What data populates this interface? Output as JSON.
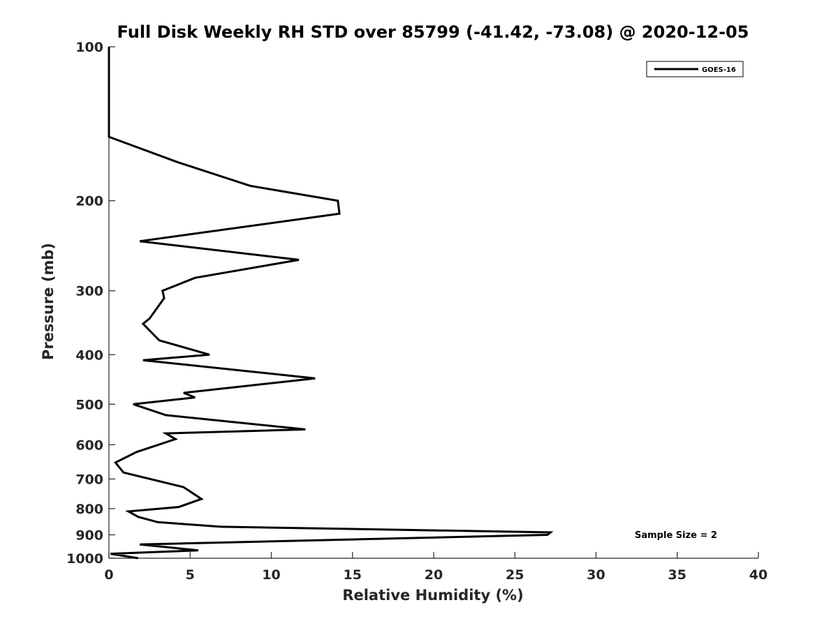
{
  "chart_data": {
    "type": "line",
    "title": "Full Disk Weekly RH STD over 85799 (-41.42, -73.08) @ 2020-12-05",
    "xlabel": "Relative Humidity (%)",
    "ylabel": "Pressure (mb)",
    "xlim": [
      0,
      40
    ],
    "ylim": [
      100,
      1000
    ],
    "yscale": "log",
    "y_reversed": true,
    "grid": false,
    "legend_location": "top-right",
    "x_ticks": [
      0,
      5,
      10,
      15,
      20,
      25,
      30,
      35,
      40
    ],
    "x_tick_labels": [
      "0",
      "5",
      "10",
      "15",
      "20",
      "25",
      "30",
      "35",
      "40"
    ],
    "y_ticks": [
      100,
      200,
      300,
      400,
      500,
      600,
      700,
      800,
      900,
      1000
    ],
    "y_tick_labels": [
      "100",
      "200",
      "300",
      "400",
      "500",
      "600",
      "700",
      "800",
      "900",
      "1000"
    ],
    "annotation": "Sample Size = 2",
    "series": [
      {
        "name": "GOES-16",
        "color": "#000000",
        "x": [
          0.0,
          0.0,
          0.0,
          0.0,
          4.2,
          8.7,
          14.1,
          14.2,
          1.9,
          11.7,
          5.3,
          3.3,
          3.3,
          3.4,
          2.5,
          2.1,
          3.1,
          6.2,
          2.1,
          12.7,
          4.6,
          5.3,
          1.5,
          3.5,
          12.1,
          3.5,
          4.1,
          1.7,
          0.4,
          0.9,
          4.6,
          5.7,
          4.3,
          1.2,
          1.8,
          3.0,
          6.9,
          27.2,
          27.0,
          1.9,
          5.5,
          0.1,
          1.8
        ],
        "y": [
          100,
          120,
          145,
          150,
          168,
          187,
          200,
          212,
          240,
          261,
          283,
          300,
          300,
          310,
          340,
          348,
          375,
          400,
          410,
          445,
          475,
          485,
          500,
          525,
          560,
          570,
          585,
          620,
          650,
          680,
          726,
          766,
          794,
          810,
          830,
          850,
          868,
          890,
          900,
          940,
          965,
          980,
          1000
        ]
      }
    ]
  }
}
